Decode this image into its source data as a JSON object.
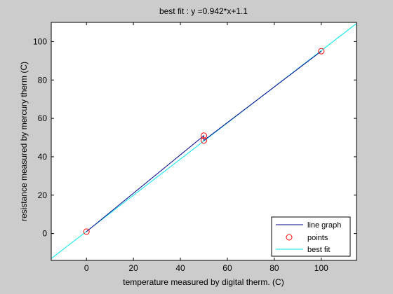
{
  "chart_data": {
    "type": "line",
    "title": "best fit : y =0.942*x+1.1",
    "xlabel": "temperature measured by digital therm. (C)",
    "ylabel": "resistance measured by mercury therm (C)",
    "xlim": [
      -15,
      115
    ],
    "ylim": [
      -14,
      110
    ],
    "xticks": [
      0,
      20,
      40,
      60,
      80,
      100
    ],
    "yticks": [
      0,
      20,
      40,
      60,
      80,
      100
    ],
    "legend_position": "bottom-right",
    "series": [
      {
        "name": "line graph",
        "kind": "line",
        "color": "#00008b",
        "x": [
          0,
          50,
          50,
          100
        ],
        "y": [
          1,
          51,
          48.5,
          95
        ]
      },
      {
        "name": "points",
        "kind": "markers",
        "marker": "circle",
        "color": "#ff0000",
        "x": [
          0,
          50,
          50,
          100
        ],
        "y": [
          1,
          51,
          48.5,
          95
        ]
      },
      {
        "name": "best fit",
        "kind": "line",
        "color": "#00e5ee",
        "slope": 0.942,
        "intercept": 1.1
      }
    ]
  }
}
